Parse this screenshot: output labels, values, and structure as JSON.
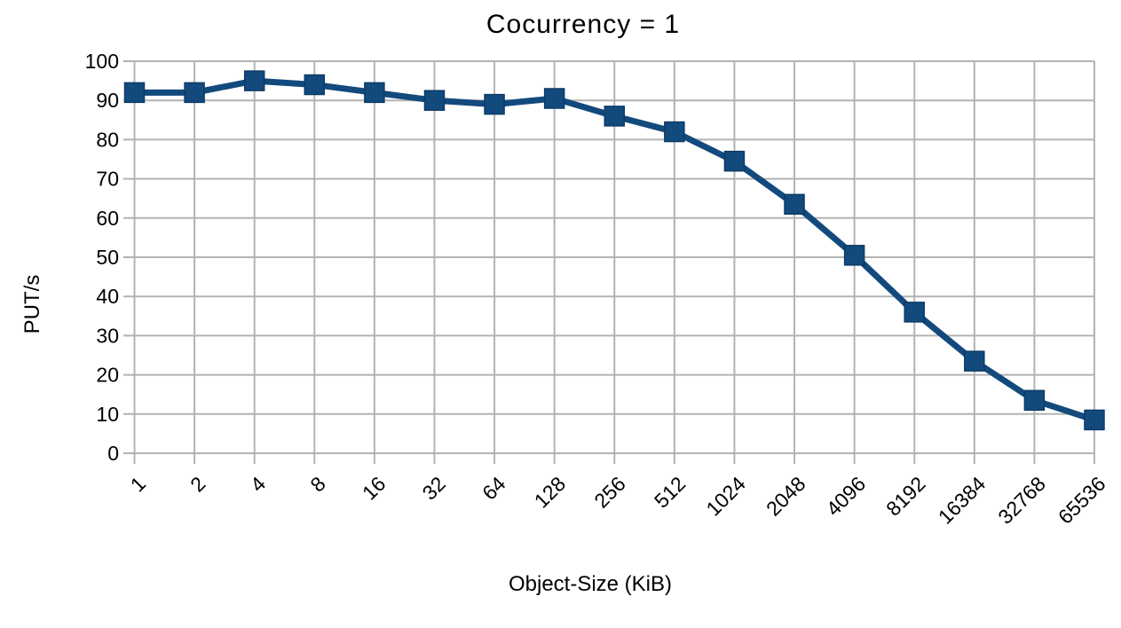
{
  "colors": {
    "series_fill": "#134a7d",
    "series_border": "#0c3a66",
    "grid": "#b3b3b3",
    "text": "#000000",
    "background": "#ffffff"
  },
  "chart_data": {
    "type": "line",
    "title": "Cocurrency = 1",
    "xlabel": "Object-Size (KiB)",
    "ylabel": "PUT/s",
    "categories": [
      "1",
      "2",
      "4",
      "8",
      "16",
      "32",
      "64",
      "128",
      "256",
      "512",
      "1024",
      "2048",
      "4096",
      "8192",
      "16384",
      "32768",
      "65536"
    ],
    "series": [
      {
        "name": "PUT/s",
        "values": [
          92,
          92,
          95,
          94,
          92,
          90,
          89,
          90.5,
          86,
          82,
          74.5,
          63.5,
          50.5,
          36,
          23.5,
          13.5,
          8.5
        ]
      }
    ],
    "ylim": [
      0,
      100
    ],
    "yticks": [
      0,
      10,
      20,
      30,
      40,
      50,
      60,
      70,
      80,
      90,
      100
    ],
    "grid": "both",
    "legend": "none",
    "marker": "square",
    "x_tick_rotation_deg": -45
  }
}
